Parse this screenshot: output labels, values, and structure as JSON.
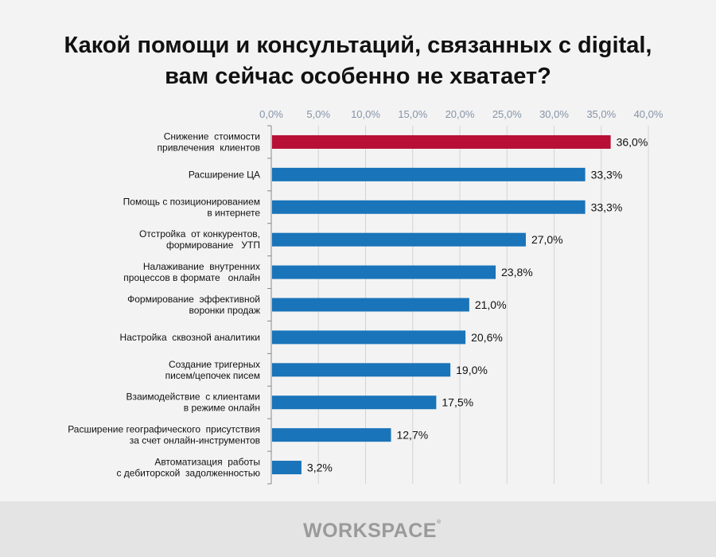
{
  "chart_data": {
    "type": "bar",
    "orientation": "horizontal",
    "title": [
      "Какой помощи и консультаций, связанных с digital,",
      "вам сейчас особенно не хватает?"
    ],
    "categories": [
      [
        "Снижение  стоимости",
        "привлечения  клиентов"
      ],
      [
        "Расширение ЦА"
      ],
      [
        "Помощь с позиционированием",
        "в интернете"
      ],
      [
        "Отстройка  от конкурентов,",
        "формирование   УТП"
      ],
      [
        "Налаживание  внутренних",
        "процессов в формате   онлайн"
      ],
      [
        "Формирование  эффективной",
        "воронки продаж"
      ],
      [
        "Настройка  сквозной аналитики"
      ],
      [
        "Создание тригерных",
        "писем/цепочек писем"
      ],
      [
        "Взаимодействие  с клиентами",
        "в режиме онлайн"
      ],
      [
        "Расширение географического  присутствия",
        "за счет онлайн-инструментов"
      ],
      [
        "Автоматизация  работы",
        "с дебиторской  задолженностью"
      ]
    ],
    "values": [
      36.0,
      33.3,
      33.3,
      27.0,
      23.8,
      21.0,
      20.6,
      19.0,
      17.5,
      12.7,
      3.2
    ],
    "data_labels": [
      "36,0%",
      "33,3%",
      "33,3%",
      "27,0%",
      "23,8%",
      "21,0%",
      "20,6%",
      "19,0%",
      "17,5%",
      "12,7%",
      "3,2%"
    ],
    "xlim": [
      0,
      40
    ],
    "x_ticks": [
      "0,0%",
      "5,0%",
      "10,0%",
      "15,0%",
      "20,0%",
      "25,0%",
      "30,0%",
      "35,0%",
      "40,0%"
    ],
    "x_axis_position": "top",
    "grid": true,
    "colors": {
      "highlight": "#b80f36",
      "default": "#1a74b9",
      "tick_label": "#8594a8"
    },
    "highlight_index": 0
  },
  "footer": {
    "logo": "WORKSPACE",
    "logo_mark": "®"
  }
}
